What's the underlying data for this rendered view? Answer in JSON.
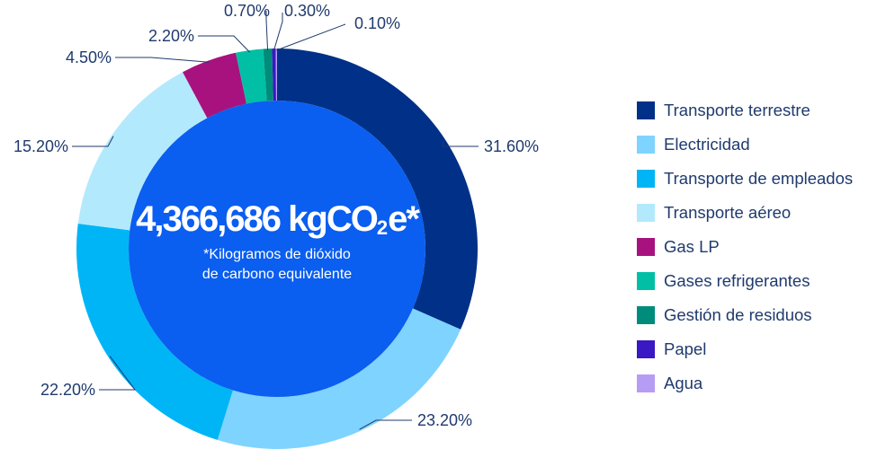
{
  "center": {
    "total_value": "4,366,686 kgCO",
    "total_subscript": "2",
    "total_suffix": "e*",
    "note_line1": "*Kilogramos de dióxido",
    "note_line2": "de carbono equivalente"
  },
  "chart_data": {
    "type": "pie",
    "subtype": "donut",
    "title": "",
    "unit": "%",
    "center_fill": "#0a5ef0",
    "categories": [
      "Transporte terrestre",
      "Electricidad",
      "Transporte de empleados",
      "Transporte aéreo",
      "Gas LP",
      "Gases refrigerantes",
      "Gestión de residuos",
      "Papel",
      "Agua"
    ],
    "values": [
      31.6,
      23.2,
      22.2,
      15.2,
      4.5,
      2.2,
      0.7,
      0.3,
      0.1
    ],
    "value_labels": [
      "31.60%",
      "23.20%",
      "22.20%",
      "15.20%",
      "4.50%",
      "2.20%",
      "0.70%",
      "0.30%",
      "0.10%"
    ],
    "colors": [
      "#003087",
      "#7fd3ff",
      "#00b5f5",
      "#b3e9fc",
      "#a8127e",
      "#00bfa5",
      "#008c7a",
      "#3a18c4",
      "#b79cf4"
    ],
    "legend_placement": "right"
  }
}
